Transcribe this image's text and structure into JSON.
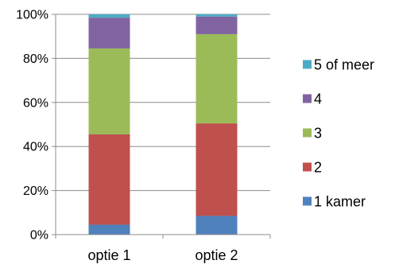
{
  "chart_data": {
    "type": "bar",
    "stacked": true,
    "percent": true,
    "categories": [
      "optie 1",
      "optie 2"
    ],
    "series": [
      {
        "name": "1 kamer",
        "color": "#4f81bd",
        "values": [
          4.5,
          8.5
        ]
      },
      {
        "name": "2",
        "color": "#c0504d",
        "values": [
          41,
          42
        ]
      },
      {
        "name": "3",
        "color": "#9bbb59",
        "values": [
          39,
          40.5
        ]
      },
      {
        "name": "4",
        "color": "#8064a2",
        "values": [
          14,
          8
        ]
      },
      {
        "name": "5 of meer",
        "color": "#4bacc6",
        "values": [
          1.5,
          1
        ]
      }
    ],
    "yticks": [
      "0%",
      "20%",
      "40%",
      "60%",
      "80%",
      "100%"
    ],
    "ylim": [
      0,
      100
    ],
    "grid": true,
    "legend_position": "right",
    "title": "",
    "xlabel": "",
    "ylabel": ""
  }
}
